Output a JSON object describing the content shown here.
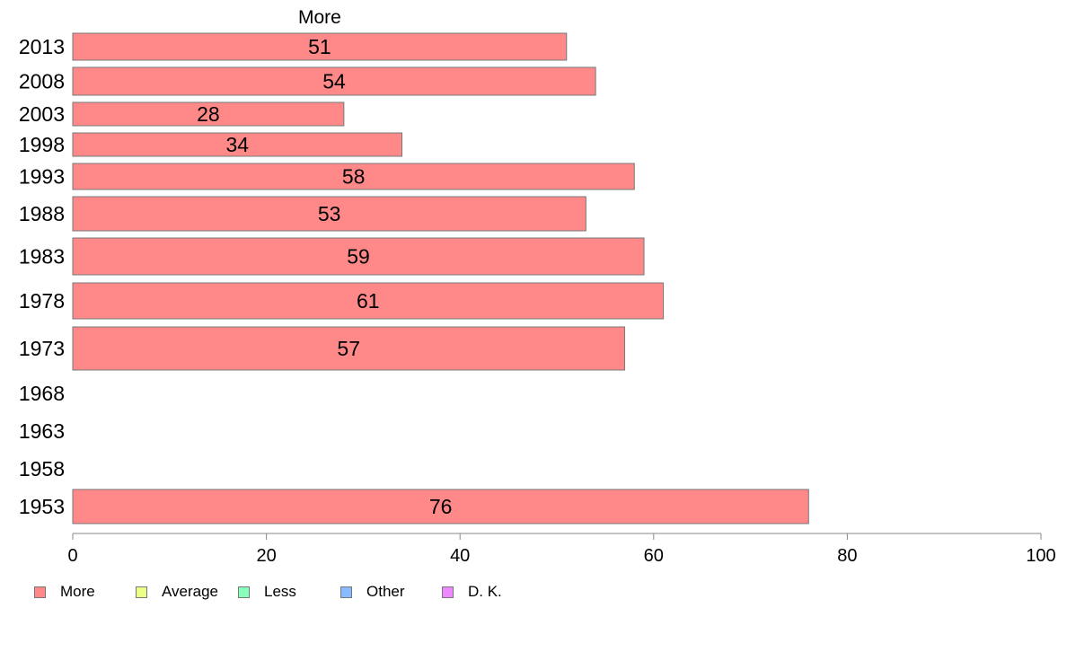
{
  "chart_data": {
    "type": "bar",
    "orientation": "horizontal",
    "series_header": "More",
    "categories": [
      "2013",
      "2008",
      "2003",
      "1998",
      "1993",
      "1988",
      "1983",
      "1978",
      "1973",
      "1968",
      "1963",
      "1958",
      "1953"
    ],
    "series": [
      {
        "name": "More",
        "values": [
          51,
          54,
          28,
          34,
          58,
          53,
          59,
          61,
          57,
          null,
          null,
          null,
          76
        ]
      }
    ],
    "data_labels": [
      "51",
      "54",
      "28",
      "34",
      "58",
      "53",
      "59",
      "61",
      "57",
      "",
      "",
      "",
      "76"
    ],
    "xlim": [
      0,
      100
    ],
    "xticks": [
      0,
      20,
      40,
      60,
      80,
      100
    ],
    "grid": false,
    "legend": {
      "placement": "bottom-left",
      "items": [
        {
          "label": "More",
          "color": "#ff8888"
        },
        {
          "label": "Average",
          "color": "#eeff88"
        },
        {
          "label": "Less",
          "color": "#88ffbb"
        },
        {
          "label": "Other",
          "color": "#88bbff"
        },
        {
          "label": "D. K.",
          "color": "#ee88ff"
        }
      ]
    }
  }
}
